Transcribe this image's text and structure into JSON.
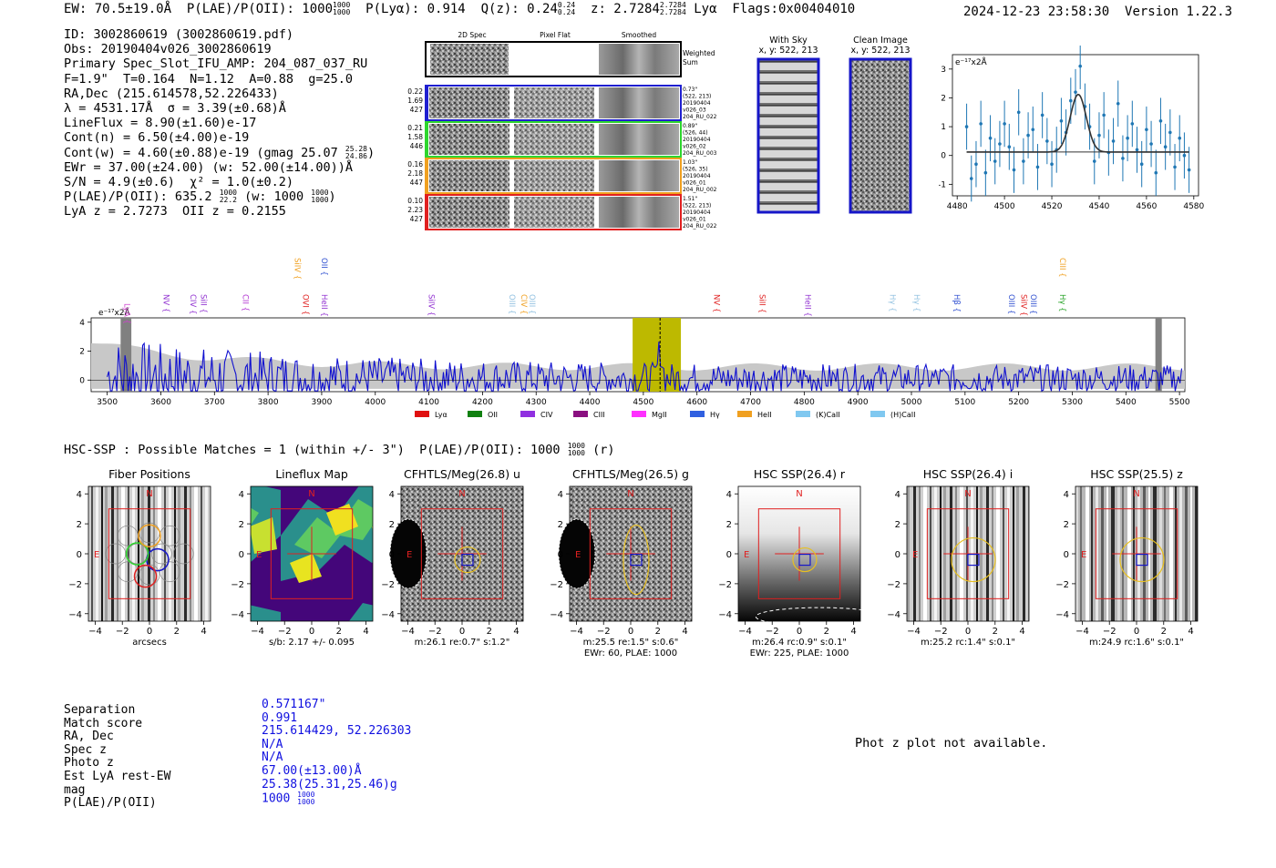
{
  "header": {
    "ew": "EW: 70.5±19.0Å",
    "plae": "P(LAE)/P(OII): 1000",
    "plae_hi": "1000",
    "plae_lo": "1000",
    "plya": "P(Lyα): 0.914",
    "qz": "Q(z): 0.24",
    "qz_hi": "0.24",
    "qz_lo": "0.24",
    "z": "z: 2.7284",
    "z_hi": "2.7284",
    "z_lo": "2.7284",
    "line": "Lyα",
    "flags": "Flags:0x00404010",
    "datetime": "2024-12-23 23:58:30",
    "version": "Version 1.22.3"
  },
  "info": {
    "id": "ID: 3002860619 (3002860619.pdf)",
    "obs": "Obs: 20190404v026_3002860619",
    "primary": "Primary Spec_Slot_IFU_AMP: 204_087_037_RU",
    "fit": "F=1.9\"  T=0.164  N=1.12  A=0.88  g=25.0",
    "radec": "RA,Dec (215.614578,52.226433)",
    "lambda": "λ = 4531.17Å  σ = 3.39(±0.68)Å",
    "lineflux": "LineFlux = 8.90(±1.60)e-17",
    "contn": "Cont(n) = 6.50(±4.00)e-19",
    "contw": "Cont(w) = 4.60(±0.88)e-19 (gmag 25.07",
    "contw_hi": "25.28",
    "contw_lo": "24.86",
    "ewr": "EWr = 37.00(±24.00) (w: 52.00(±14.00))Å",
    "sn": "S/N = 4.9(±0.6)  χ² = 1.0(±0.2)",
    "plae": "P(LAE)/P(OII): 635.2",
    "plae_hi": "1000",
    "plae_lo": "22.2",
    "plae_w": "(w: 1000",
    "plae_w_hi": "1000",
    "plae_w_lo": "1000",
    "lyaz": "LyA z = 2.7273  OII z = 0.2155"
  },
  "cutouts": {
    "col_labels": [
      "2D Spec",
      "Pixel Flat",
      "Smoothed"
    ],
    "weighted_sum": [
      "Weighted",
      "Sum"
    ],
    "rows": [
      {
        "left": [
          "0.22",
          "1.69",
          "427"
        ],
        "right": [
          "0.73\"",
          "(522, 213)",
          "20190404",
          "v026_03",
          "204_RU_022"
        ],
        "color": "#1f1fd0"
      },
      {
        "left": [
          "0.21",
          "1.58",
          "446"
        ],
        "right": [
          "0.89\"",
          "(526, 44)",
          "20190404",
          "v026_02",
          "204_RU_003"
        ],
        "color": "#2ed62e"
      },
      {
        "left": [
          "0.16",
          "2.18",
          "447"
        ],
        "right": [
          "1.03\"",
          "(526, 35)",
          "20190404",
          "v026_01",
          "204_RU_002"
        ],
        "color": "#f0a020"
      },
      {
        "left": [
          "0.10",
          "2.23",
          "427"
        ],
        "right": [
          "1.51\"",
          "(522, 213)",
          "20190404",
          "v026_01",
          "204_RU_022"
        ],
        "color": "#e02020"
      }
    ],
    "with_sky": [
      "With Sky",
      "x, y: 522, 213"
    ],
    "clean": [
      "Clean Image",
      "x, y: 522, 213"
    ]
  },
  "zoom_spectrum": {
    "ylabel": "e⁻¹⁷x2Å",
    "xlim": [
      4478,
      4582
    ],
    "ylim": [
      -1.4,
      3.5
    ],
    "xticks": [
      4480,
      4500,
      4520,
      4540,
      4560,
      4580
    ],
    "yticks": [
      -1,
      0,
      1,
      2,
      3
    ],
    "fit_center": 4531.17,
    "fit_sigma": 3.39,
    "fit_amp": 2.0,
    "fit_base": 0.12,
    "x": [
      4484,
      4486,
      4488,
      4490,
      4492,
      4494,
      4496,
      4498,
      4500,
      4502,
      4504,
      4506,
      4508,
      4510,
      4512,
      4514,
      4516,
      4518,
      4520,
      4522,
      4524,
      4526,
      4528,
      4530,
      4532,
      4534,
      4536,
      4538,
      4540,
      4542,
      4544,
      4546,
      4548,
      4550,
      4552,
      4554,
      4556,
      4558,
      4560,
      4562,
      4564,
      4566,
      4568,
      4570,
      4572,
      4574,
      4576,
      4578
    ],
    "y": [
      1.0,
      -0.8,
      -0.3,
      1.1,
      -0.6,
      0.6,
      -0.2,
      0.4,
      1.1,
      0.3,
      -0.5,
      1.5,
      -0.2,
      0.7,
      0.9,
      -0.4,
      1.4,
      0.5,
      -0.3,
      0.2,
      1.2,
      0.8,
      1.9,
      2.2,
      3.1,
      1.7,
      1.0,
      -0.2,
      0.7,
      1.4,
      0.1,
      0.5,
      1.8,
      -0.1,
      0.6,
      1.1,
      0.2,
      -0.3,
      0.9,
      0.4,
      -0.6,
      1.2,
      0.3,
      0.8,
      -0.4,
      0.6,
      0.0,
      -0.5
    ],
    "err": 0.8
  },
  "main_spectrum": {
    "ylabel": "e⁻¹⁷x2Å",
    "xlim": [
      3470,
      5510
    ],
    "ylim": [
      -0.8,
      4.3
    ],
    "xticks": [
      3500,
      3600,
      3700,
      3800,
      3900,
      4000,
      4100,
      4200,
      4300,
      4400,
      4500,
      4600,
      4700,
      4800,
      4900,
      5000,
      5100,
      5200,
      5300,
      5400,
      5500
    ],
    "yticks": [
      0,
      2,
      4
    ],
    "highlight": [
      4480,
      4570
    ],
    "line_marker": 4531.17,
    "lines": [
      {
        "name": "LyA",
        "x": 3527,
        "color": "#d040d0",
        "row": 2
      },
      {
        "name": "NV",
        "x": 3600,
        "color": "#9030d0",
        "row": 1
      },
      {
        "name": "CIV",
        "x": 3650,
        "color": "#9030d0",
        "row": 1
      },
      {
        "name": "SiII",
        "x": 3670,
        "color": "#9030d0",
        "row": 1
      },
      {
        "name": "CII",
        "x": 3748,
        "color": "#b030d0",
        "row": 1
      },
      {
        "name": "OVI",
        "x": 3860,
        "color": "#e02020",
        "row": 1
      },
      {
        "name": "SiIV",
        "x": 3845,
        "color": "#f0a020",
        "row": 0
      },
      {
        "name": "OII",
        "x": 3895,
        "color": "#3050d0",
        "row": 0
      },
      {
        "name": "HeII",
        "x": 3895,
        "color": "#9030d0",
        "row": 1
      },
      {
        "name": "SiIV",
        "x": 4095,
        "color": "#9030d0",
        "row": 1
      },
      {
        "name": "OIII",
        "x": 4245,
        "color": "#90c0e0",
        "row": 1
      },
      {
        "name": "CIV",
        "x": 4267,
        "color": "#f0a020",
        "row": 1
      },
      {
        "name": "OIII",
        "x": 4283,
        "color": "#90c0e0",
        "row": 1
      },
      {
        "name": "NV",
        "x": 4627,
        "color": "#e02020",
        "row": 1
      },
      {
        "name": "SiII",
        "x": 4712,
        "color": "#e02020",
        "row": 1
      },
      {
        "name": "HeII",
        "x": 4797,
        "color": "#9030d0",
        "row": 1
      },
      {
        "name": "Hγ",
        "x": 4955,
        "color": "#90c0e0",
        "row": 1
      },
      {
        "name": "Hγ",
        "x": 5000,
        "color": "#90c0e0",
        "row": 1
      },
      {
        "name": "Hβ",
        "x": 5075,
        "color": "#3050d0",
        "row": 1
      },
      {
        "name": "OIII",
        "x": 5177,
        "color": "#3050d0",
        "row": 1
      },
      {
        "name": "SiIV",
        "x": 5200,
        "color": "#e02020",
        "row": 1
      },
      {
        "name": "OIII",
        "x": 5218,
        "color": "#3050d0",
        "row": 1
      },
      {
        "name": "CIII",
        "x": 5272,
        "color": "#f0a020",
        "row": 0
      },
      {
        "name": "Hγ",
        "x": 5272,
        "color": "#20a020",
        "row": 1
      }
    ],
    "legend": [
      {
        "label": "Lyα",
        "color": "#e01010"
      },
      {
        "label": "OII",
        "color": "#108010"
      },
      {
        "label": "CIV",
        "color": "#9030e0"
      },
      {
        "label": "CIII",
        "color": "#8a1080"
      },
      {
        "label": "MgII",
        "color": "#ff30ff"
      },
      {
        "label": "Hγ",
        "color": "#3060e0"
      },
      {
        "label": "HeII",
        "color": "#f0a020"
      },
      {
        "label": "(K)CaII",
        "color": "#80c8f0"
      },
      {
        "label": "(H)CaII",
        "color": "#80c8f0"
      }
    ]
  },
  "hsc_line": "HSC-SSP : Possible Matches = 1 (within +/- 3\")  P(LAE)/P(OII): 1000",
  "hsc_hi": "1000",
  "hsc_lo": "1000",
  "hsc_band": "(r)",
  "panels": [
    {
      "title": "Fiber Positions",
      "caption1": "arcsecs",
      "caption2": "",
      "kind": "fiber"
    },
    {
      "title": "Lineflux Map",
      "caption1": "s/b: 2.17 +/- 0.095",
      "caption2": "",
      "kind": "lineflux"
    },
    {
      "title": "CFHTLS/Meg(26.8) u",
      "caption1": "m:26.1   re:0.7\"  s:1.2\"",
      "caption2": "",
      "kind": "noise-left"
    },
    {
      "title": "CFHTLS/Meg(26.5) g",
      "caption1": "m:25.5   re:1.5\"  s:0.6\"",
      "caption2": "EWr: 60, PLAE: 1000",
      "kind": "noise-left2"
    },
    {
      "title": "HSC SSP(26.4) r",
      "caption1": "m:26.4  rc:0.9\"  s:0.1\"",
      "caption2": "EWr: 225, PLAE: 1000",
      "kind": "gradient"
    },
    {
      "title": "HSC SSP(26.4) i",
      "caption1": "m:25.2  rc:1.4\"  s:0.1\"",
      "caption2": "",
      "kind": "stripes"
    },
    {
      "title": "HSC SSP(25.5) z",
      "caption1": "m:24.9  rc:1.6\"  s:0.1\"",
      "caption2": "",
      "kind": "stripes2"
    }
  ],
  "panel_axis": {
    "ticks": [
      -4,
      -2,
      0,
      2,
      4
    ],
    "north": "N",
    "east": "E"
  },
  "match": {
    "labels": [
      "Separation",
      "Match score",
      "RA, Dec",
      "Spec z",
      "Photo z",
      "Est LyA rest-EW",
      "mag",
      "P(LAE)/P(OII)"
    ],
    "values": [
      "0.571167\"",
      "0.991",
      "215.614429, 52.226303",
      "N/A",
      "N/A",
      "67.00(±13.00)Å",
      "25.38(25.31,25.46)g",
      "1000"
    ],
    "plae_hi": "1000",
    "plae_lo": "1000"
  },
  "photz": "Phot z plot not available.",
  "chart_data": [
    {
      "type": "line",
      "title": "",
      "xlabel": "",
      "ylabel": "e⁻¹⁷x2Å",
      "x_range": [
        3500,
        5500
      ],
      "ylim": [
        -0.8,
        4.3
      ],
      "series": [
        {
          "values": "flux spectrum, peak at 4531"
        }
      ]
    },
    {
      "type": "scatter",
      "xlabel": "",
      "ylabel": "e⁻¹⁷x2Å",
      "x_range": [
        4480,
        4580
      ],
      "ylim": [
        -1.4,
        3.5
      ]
    }
  ]
}
